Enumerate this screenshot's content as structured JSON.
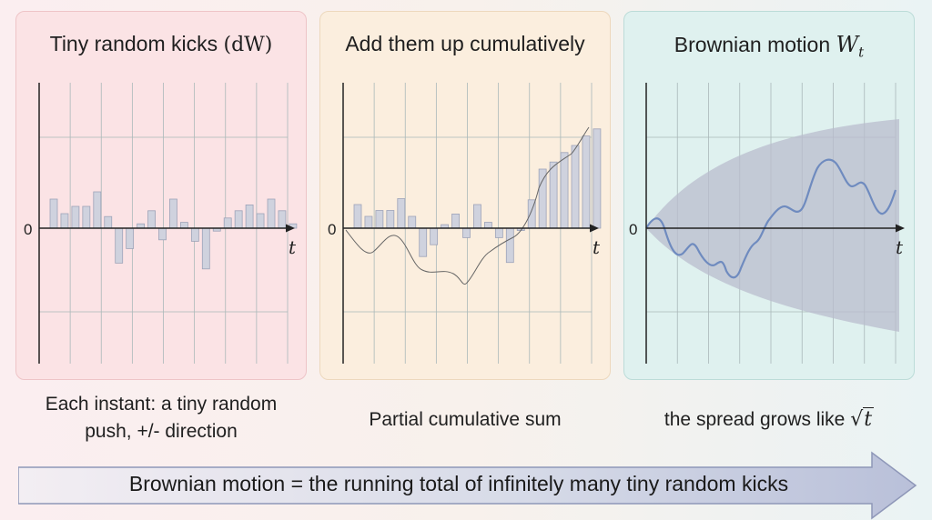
{
  "panels": {
    "kicks": {
      "title_text": "Tiny random kicks",
      "title_math": "(dW)",
      "caption_line1": "Each instant: a tiny random",
      "caption_line2": "push, +/- direction",
      "zero_label": "0",
      "axis_label": "t",
      "bar_values": [
        1.0,
        0.5,
        0.75,
        0.75,
        1.25,
        0.4,
        -1.2,
        -0.7,
        0.15,
        0.6,
        -0.4,
        1.0,
        0.2,
        -0.45,
        -1.4,
        -0.1,
        0.35,
        0.6,
        0.8,
        0.5,
        1.0,
        0.6,
        0.15
      ]
    },
    "sum": {
      "title": "Add them up cumulatively",
      "caption": "Partial cumulative sum",
      "zero_label": "0",
      "axis_label": "t",
      "bar_values": [
        1.0,
        0.5,
        0.75,
        0.75,
        1.25,
        0.5,
        -1.2,
        -0.7,
        0.15,
        0.6,
        -0.4,
        1.0,
        0.25,
        -0.4,
        -1.45,
        -0.1,
        1.2,
        2.5,
        2.8,
        3.2,
        3.5,
        3.9,
        4.2
      ]
    },
    "bm": {
      "title_text": "Brownian motion",
      "title_math": "W",
      "title_sub": "t",
      "caption_text": "the spread grows like",
      "caption_sqrt": "t",
      "zero_label": "0",
      "axis_label": "t"
    }
  },
  "banner": {
    "text": "Brownian motion = the running total of infinitely many tiny random kicks"
  },
  "colors": {
    "bar_fill": "#cfd2de",
    "bar_stroke": "#9da3b8",
    "path": "#6f8bbf",
    "cone": "#b9bccd",
    "grid": "#aab8b9"
  }
}
